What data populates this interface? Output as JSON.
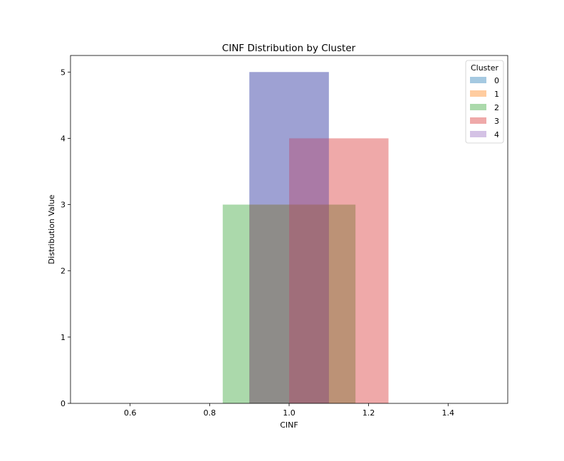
{
  "chart_data": {
    "type": "bar",
    "title": "CINF Distribution by Cluster",
    "xlabel": "CINF",
    "ylabel": "Distribution Value",
    "xlim": [
      0.45,
      1.55
    ],
    "ylim": [
      0,
      5.25
    ],
    "xticks": [
      "0.6",
      "0.8",
      "1.0",
      "1.2",
      "1.4"
    ],
    "yticks": [
      "0",
      "1",
      "2",
      "3",
      "4",
      "5"
    ],
    "grid": false,
    "legend": {
      "title": "Cluster",
      "placement": "top-right"
    },
    "series": [
      {
        "name": "0",
        "color": "#1f77b4",
        "opacity": 0.4,
        "bars": [
          {
            "x0": 0.9,
            "x1": 1.1,
            "value": 5
          }
        ]
      },
      {
        "name": "1",
        "color": "#ff7f0e",
        "opacity": 0.4,
        "bars": [
          {
            "x0": 0.9,
            "x1": 1.1,
            "value": 3
          }
        ]
      },
      {
        "name": "2",
        "color": "#2ca02c",
        "opacity": 0.4,
        "bars": [
          {
            "x0": 0.833,
            "x1": 1.167,
            "value": 3
          }
        ]
      },
      {
        "name": "3",
        "color": "#d62728",
        "opacity": 0.4,
        "bars": [
          {
            "x0": 1.0,
            "x1": 1.25,
            "value": 4
          }
        ]
      },
      {
        "name": "4",
        "color": "#9467bd",
        "opacity": 0.4,
        "bars": [
          {
            "x0": 0.9,
            "x1": 1.1,
            "value": 5
          }
        ]
      }
    ]
  }
}
